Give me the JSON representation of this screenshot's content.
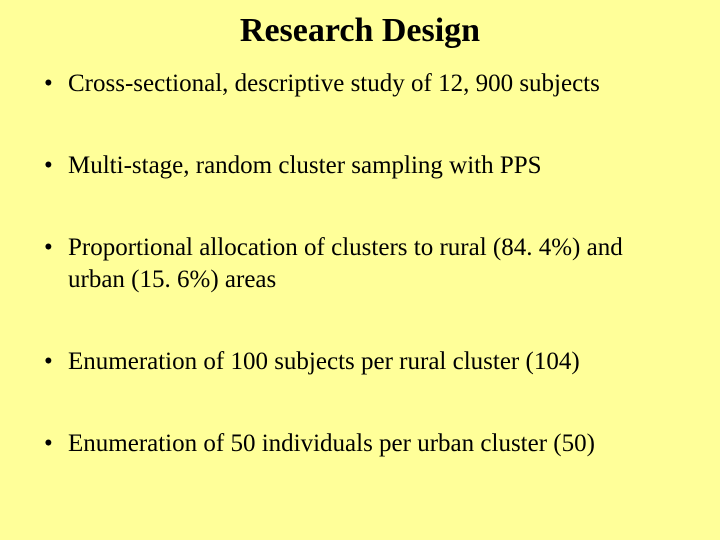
{
  "slide": {
    "background_color": "#ffff99",
    "text_color": "#000000",
    "title": "Research Design",
    "title_fontsize": 34,
    "bullet_fontsize": 25,
    "line_height": 1.28,
    "bullets": [
      "Cross-sectional, descriptive study of 12, 900 subjects",
      "Multi-stage, random cluster sampling with PPS",
      "Proportional allocation of clusters to rural (84. 4%) and urban (15. 6%) areas",
      "Enumeration of 100 subjects per rural cluster (104)",
      "Enumeration of 50 individuals per urban cluster (50)"
    ]
  }
}
